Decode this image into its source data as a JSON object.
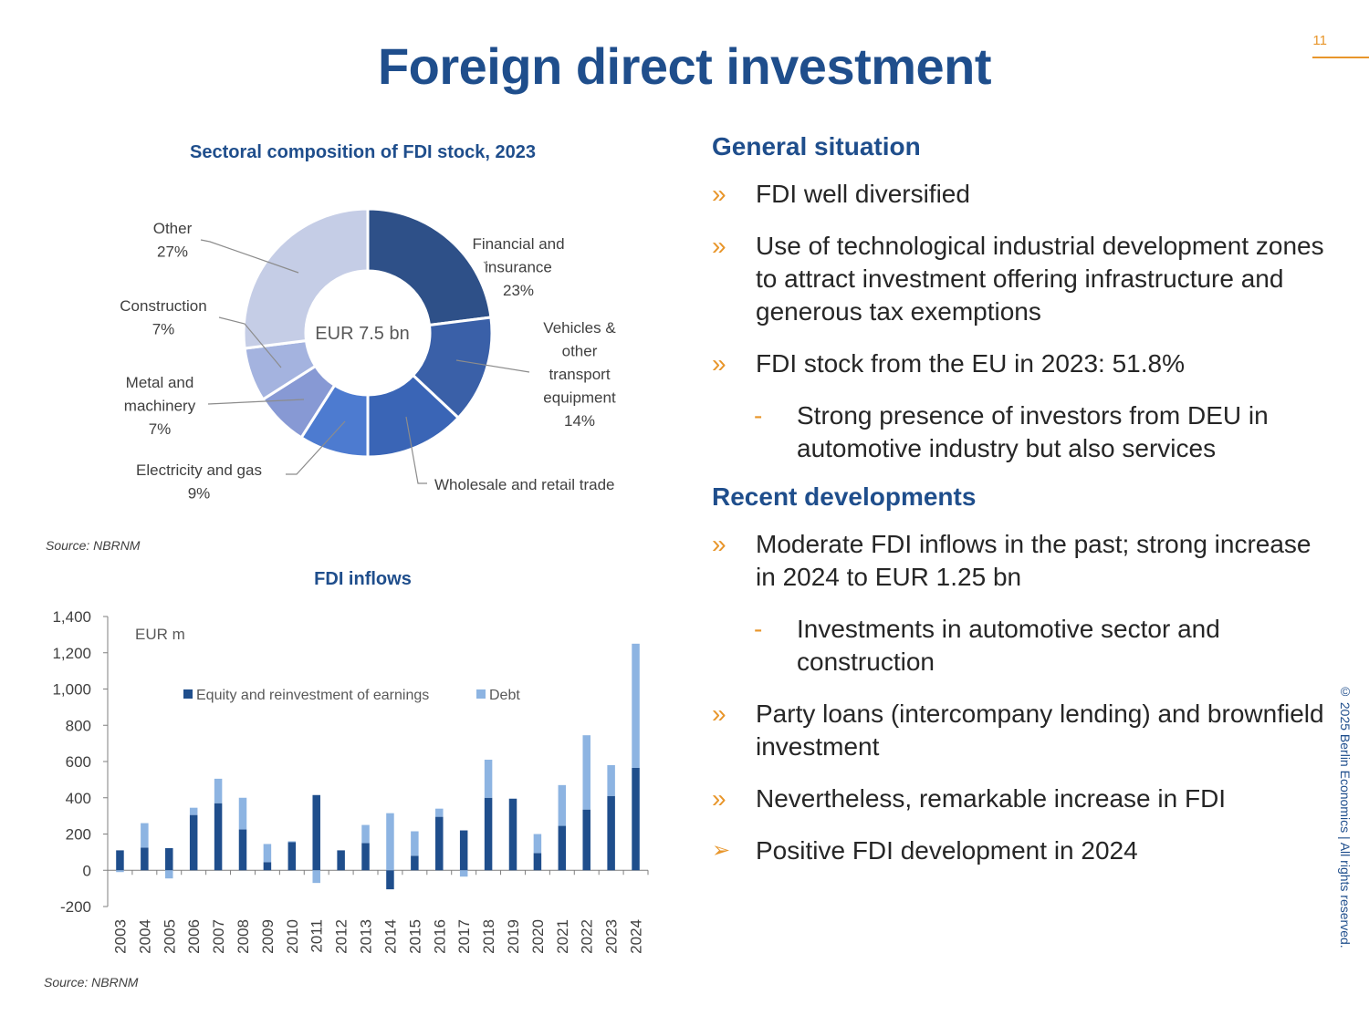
{
  "page": {
    "number": "11",
    "title": "Foreign direct investment",
    "copyright": "© 2025 Berlin Economics | All rights reserved."
  },
  "colors": {
    "brand_blue": "#1f4e8c",
    "accent_orange": "#e8962b",
    "equity_bar": "#1f4e8c",
    "debt_bar": "#8db4e2"
  },
  "left": {
    "donut_title": "Sectoral composition of FDI stock, 2023",
    "donut_source": "Source: NBRNM",
    "bar_title": "FDI inflows",
    "bar_source": "Source: NBRNM"
  },
  "right": {
    "general_heading": "General situation",
    "general_items": [
      "FDI well diversified",
      "Use of technological industrial development zones to attract investment offering infrastructure and generous tax exemptions",
      "FDI stock from the EU in 2023: 51.8%"
    ],
    "general_sub": "Strong presence of investors from DEU in automotive industry but also services",
    "recent_heading": "Recent developments",
    "recent_item_1": "Moderate FDI inflows in the past; strong increase in 2024 to EUR 1.25 bn",
    "recent_sub": "Investments in automotive sector and construction",
    "recent_items": [
      "Party loans (intercompany lending) and brownfield investment",
      "Nevertheless, remarkable increase in FDI"
    ],
    "conclusion": "Positive FDI development in 2024",
    "bullet_marker": "»",
    "sub_marker": "-",
    "arrow_marker": "➢"
  },
  "chart_data": [
    {
      "type": "pie",
      "title": "Sectoral composition of FDI stock, 2023",
      "center_label": "EUR 7.5 bn",
      "slices": [
        {
          "name": "Financial and insurance",
          "value": 23,
          "label_lines": [
            "Financial and",
            "insurance",
            "23%"
          ],
          "color": "#2e5088"
        },
        {
          "name": "Vehicles & other transport equipment",
          "value": 14,
          "label_lines": [
            "Vehicles &",
            "other",
            "transport",
            "equipment",
            "14%"
          ],
          "color": "#3a60a8"
        },
        {
          "name": "Wholesale and retail trade",
          "value": 13,
          "label_lines": [
            "Wholesale and retail trade"
          ],
          "color": "#3a65b6"
        },
        {
          "name": "Electricity and gas",
          "value": 9,
          "label_lines": [
            "Electricity and gas",
            "9%"
          ],
          "color": "#4d7bd0"
        },
        {
          "name": "Metal and machinery",
          "value": 7,
          "label_lines": [
            "Metal and",
            "machinery",
            "7%"
          ],
          "color": "#8799d4"
        },
        {
          "name": "Construction",
          "value": 7,
          "label_lines": [
            "Construction",
            "7%"
          ],
          "color": "#a4b3df"
        },
        {
          "name": "Other",
          "value": 27,
          "label_lines": [
            "Other",
            "27%"
          ],
          "color": "#c5cde6"
        }
      ]
    },
    {
      "type": "bar",
      "stacked": true,
      "title": "FDI inflows",
      "unit_label": "EUR m",
      "categories": [
        "2003",
        "2004",
        "2005",
        "2006",
        "2007",
        "2008",
        "2009",
        "2010",
        "2011",
        "2012",
        "2013",
        "2014",
        "2015",
        "2016",
        "2017",
        "2018",
        "2019",
        "2020",
        "2021",
        "2022",
        "2023",
        "2024"
      ],
      "series": [
        {
          "name": "Equity and reinvestment of earnings",
          "color": "#1f4e8c",
          "values": [
            110,
            125,
            122,
            305,
            370,
            225,
            45,
            155,
            415,
            110,
            150,
            -105,
            80,
            295,
            220,
            400,
            395,
            95,
            245,
            335,
            410,
            565
          ]
        },
        {
          "name": "Debt",
          "color": "#8db4e2",
          "values": [
            -10,
            135,
            -45,
            40,
            135,
            175,
            100,
            5,
            -70,
            0,
            100,
            315,
            135,
            45,
            -35,
            210,
            0,
            105,
            225,
            410,
            170,
            685
          ]
        }
      ],
      "ylim": [
        -200,
        1400
      ],
      "yticks": [
        "-200",
        "0",
        "200",
        "400",
        "600",
        "800",
        "1,000",
        "1,200",
        "1,400"
      ],
      "legend": "top-center"
    }
  ]
}
